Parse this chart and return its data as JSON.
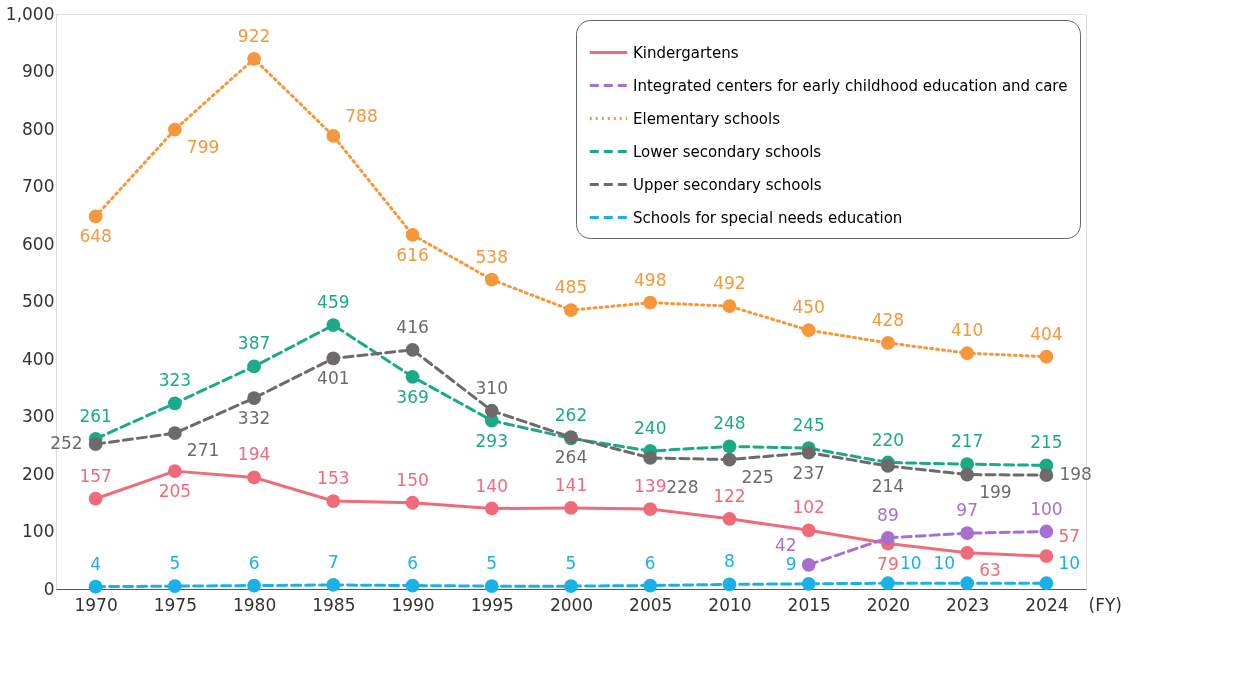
{
  "chart_data": {
    "type": "line",
    "categories": [
      "1970",
      "1975",
      "1980",
      "1985",
      "1990",
      "1995",
      "2000",
      "2005",
      "2010",
      "2015",
      "2020",
      "2023",
      "2024"
    ],
    "xlabel": "(FY)",
    "ylim": [
      0,
      1000
    ],
    "yticks": [
      0,
      100,
      200,
      300,
      400,
      500,
      600,
      700,
      800,
      900,
      {
        "value": 1000,
        "label": "1,000"
      }
    ],
    "series": [
      {
        "name": "Kindergartens",
        "color": "#f06b7a",
        "line_style": "solid",
        "values": [
          157,
          205,
          194,
          153,
          150,
          140,
          141,
          139,
          122,
          102,
          79,
          63,
          57
        ]
      },
      {
        "name": "Integrated centers for early childhood education and care",
        "color": "#a770d0",
        "line_style": "dashed",
        "values": [
          null,
          null,
          null,
          null,
          null,
          null,
          null,
          null,
          null,
          42,
          89,
          97,
          100
        ]
      },
      {
        "name": "Elementary schools",
        "color": "#f5973a",
        "line_style": "dotted",
        "values": [
          648,
          799,
          922,
          788,
          616,
          538,
          485,
          498,
          492,
          450,
          428,
          410,
          404
        ]
      },
      {
        "name": "Lower secondary schools",
        "color": "#1aab86",
        "line_style": "dashed",
        "values": [
          261,
          323,
          387,
          459,
          369,
          293,
          262,
          240,
          248,
          245,
          220,
          217,
          215
        ]
      },
      {
        "name": "Upper secondary schools",
        "color": "#6e6a6b",
        "line_style": "dashed",
        "values": [
          252,
          271,
          332,
          401,
          416,
          310,
          264,
          228,
          225,
          237,
          214,
          199,
          198
        ]
      },
      {
        "name": "Schools for special needs education",
        "color": "#1ab0e8",
        "line_style": "dashed",
        "values": [
          4,
          5,
          6,
          7,
          6,
          5,
          5,
          6,
          8,
          9,
          10,
          10,
          10
        ]
      }
    ],
    "marker": "circle",
    "data_labels": true,
    "legend": "top right",
    "grid": false
  }
}
